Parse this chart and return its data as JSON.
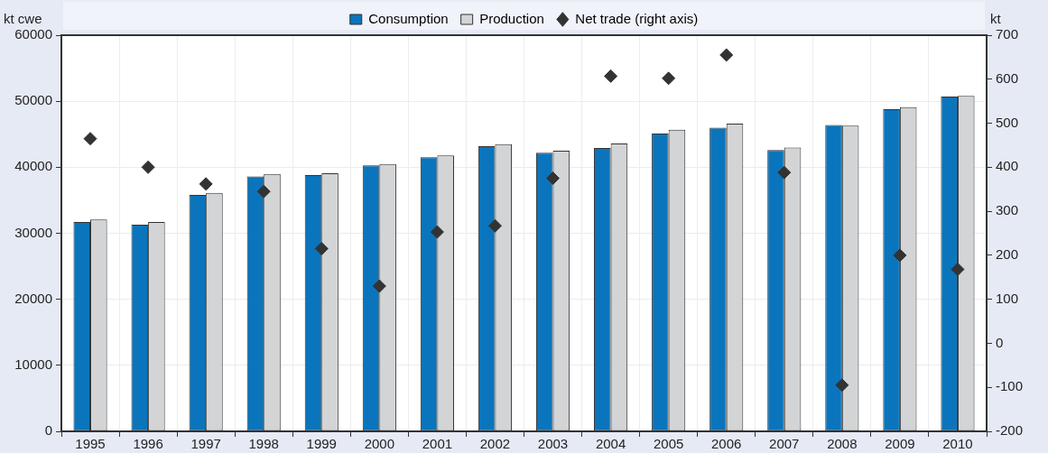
{
  "chart_data": {
    "type": "bar",
    "ylabel": "kt cwe",
    "y2label": "kt",
    "categories": [
      "1995",
      "1996",
      "1997",
      "1998",
      "1999",
      "2000",
      "2001",
      "2002",
      "2003",
      "2004",
      "2005",
      "2006",
      "2007",
      "2008",
      "2009",
      "2010"
    ],
    "series": [
      {
        "name": "Consumption",
        "color": "#0a75bc",
        "values": [
          31700,
          31300,
          35800,
          38600,
          38800,
          40300,
          41500,
          43200,
          42200,
          42900,
          45100,
          46000,
          42600,
          46400,
          48800,
          50700
        ]
      },
      {
        "name": "Production",
        "color": "#d3d4d6",
        "values": [
          32100,
          31700,
          36100,
          39000,
          39100,
          40500,
          41800,
          43500,
          42500,
          43600,
          45700,
          46600,
          43000,
          46300,
          49100,
          50800
        ]
      },
      {
        "name": "Net trade (right axis)",
        "type": "scatter",
        "axis": "y2",
        "color": "#333333",
        "values": [
          465,
          400,
          362,
          345,
          215,
          130,
          253,
          267,
          375,
          607,
          602,
          655,
          388,
          -95,
          200,
          168
        ]
      }
    ],
    "ylim": [
      0,
      60000
    ],
    "yticks": [
      0,
      10000,
      20000,
      30000,
      40000,
      50000,
      60000
    ],
    "y2lim": [
      -200,
      700
    ],
    "y2ticks": [
      -200,
      -100,
      0,
      100,
      200,
      300,
      400,
      500,
      600,
      700
    ],
    "grid": true,
    "legend": "top",
    "marker": "diamond"
  }
}
